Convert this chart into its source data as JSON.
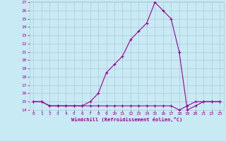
{
  "xlabel": "Windchill (Refroidissement éolien,°C)",
  "x": [
    0,
    1,
    2,
    3,
    4,
    5,
    6,
    7,
    8,
    9,
    10,
    11,
    12,
    13,
    14,
    15,
    16,
    17,
    18,
    19,
    20,
    21,
    22,
    23
  ],
  "y_main": [
    15,
    15,
    14.5,
    14.5,
    14.5,
    14.5,
    14.5,
    15,
    16,
    18.5,
    19.5,
    20.5,
    22.5,
    23.5,
    24.5,
    27,
    26,
    25,
    21,
    14,
    14.5,
    15,
    15,
    15
  ],
  "y_flat": [
    15,
    15,
    14.5,
    14.5,
    14.5,
    14.5,
    14.5,
    14.5,
    14.5,
    14.5,
    14.5,
    14.5,
    14.5,
    14.5,
    14.5,
    14.5,
    14.5,
    14.5,
    14,
    14.5,
    15,
    15,
    15,
    15
  ],
  "ylim": [
    14,
    27
  ],
  "xlim": [
    -0.5,
    23.5
  ],
  "yticks": [
    14,
    15,
    16,
    17,
    18,
    19,
    20,
    21,
    22,
    23,
    24,
    25,
    26,
    27
  ],
  "xticks": [
    0,
    1,
    2,
    3,
    4,
    5,
    6,
    7,
    8,
    9,
    10,
    11,
    12,
    13,
    14,
    15,
    16,
    17,
    18,
    19,
    20,
    21,
    22,
    23
  ],
  "line_color": "#990099",
  "marker": "+",
  "bg_color": "#c8eaf4",
  "grid_color": "#b0c8d8",
  "text_color": "#990099",
  "marker_size": 3,
  "line_width": 0.8
}
